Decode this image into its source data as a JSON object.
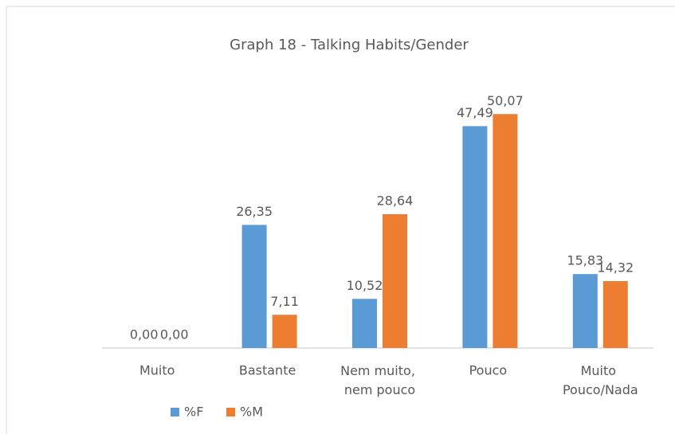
{
  "chart_data": {
    "type": "bar",
    "title": "Graph 18 - Talking Habits/Gender",
    "categories": [
      "Muito",
      "Bastante",
      "Nem muito, nem pouco",
      "Pouco",
      "Muito Pouco/Nada"
    ],
    "series": [
      {
        "name": "%F",
        "color": "#5b9bd5",
        "values": [
          0.0,
          26.35,
          10.52,
          47.49,
          15.83
        ],
        "value_labels": [
          "0,00",
          "26,35",
          "10,52",
          "47,49",
          "15,83"
        ]
      },
      {
        "name": "%M",
        "color": "#ed7d31",
        "values": [
          0.0,
          7.11,
          28.64,
          50.07,
          14.32
        ],
        "value_labels": [
          "0,00",
          "7,11",
          "28,64",
          "50,07",
          "14,32"
        ]
      }
    ],
    "ylim": [
      0,
      60
    ],
    "legend": "bottom"
  }
}
